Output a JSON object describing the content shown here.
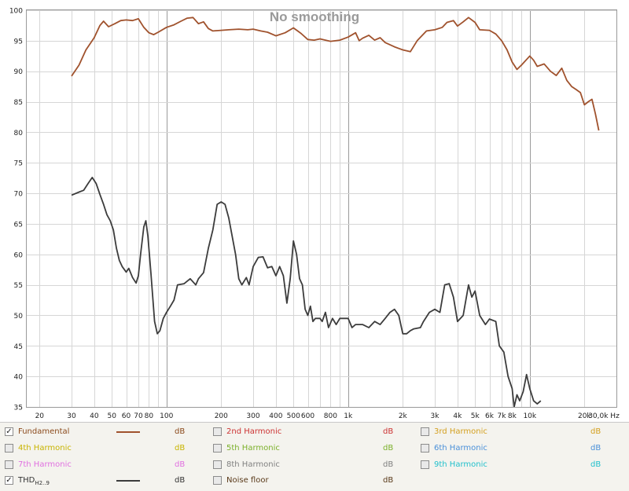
{
  "chart_data": {
    "type": "line",
    "title": "No smoothing",
    "x_scale": "log",
    "xlim": [
      17,
      30000
    ],
    "ylim": [
      35,
      100
    ],
    "y_ticks": [
      35,
      40,
      45,
      50,
      55,
      60,
      65,
      70,
      75,
      80,
      85,
      90,
      95,
      100
    ],
    "y_unit": "dB",
    "x_ticks": [
      {
        "value": 20,
        "label": "20"
      },
      {
        "value": 30,
        "label": "30"
      },
      {
        "value": 40,
        "label": "40"
      },
      {
        "value": 50,
        "label": "50"
      },
      {
        "value": 60,
        "label": "60"
      },
      {
        "value": 70,
        "label": "70"
      },
      {
        "value": 80,
        "label": "80"
      },
      {
        "value": 100,
        "label": "100"
      },
      {
        "value": 200,
        "label": "200"
      },
      {
        "value": 300,
        "label": "300"
      },
      {
        "value": 400,
        "label": "400"
      },
      {
        "value": 500,
        "label": "500"
      },
      {
        "value": 600,
        "label": "600"
      },
      {
        "value": 800,
        "label": "800"
      },
      {
        "value": 1000,
        "label": "1k"
      },
      {
        "value": 2000,
        "label": "2k"
      },
      {
        "value": 3000,
        "label": "3k"
      },
      {
        "value": 4000,
        "label": "4k"
      },
      {
        "value": 5000,
        "label": "5k"
      },
      {
        "value": 6000,
        "label": "6k"
      },
      {
        "value": 7000,
        "label": "7k"
      },
      {
        "value": 8000,
        "label": "8k"
      },
      {
        "value": 10000,
        "label": "10k"
      },
      {
        "value": 20000,
        "label": "20k"
      },
      {
        "value": 30000,
        "label": "30,0k Hz"
      }
    ],
    "grid": true,
    "series": [
      {
        "name": "Fundamental",
        "color": "#a0522d",
        "points": [
          [
            30,
            89.2
          ],
          [
            33,
            91
          ],
          [
            36,
            93.5
          ],
          [
            40,
            95.5
          ],
          [
            43,
            97.5
          ],
          [
            45,
            98.2
          ],
          [
            48,
            97.3
          ],
          [
            52,
            97.8
          ],
          [
            56,
            98.3
          ],
          [
            60,
            98.4
          ],
          [
            65,
            98.3
          ],
          [
            70,
            98.6
          ],
          [
            75,
            97.2
          ],
          [
            80,
            96.3
          ],
          [
            85,
            96
          ],
          [
            90,
            96.4
          ],
          [
            100,
            97.2
          ],
          [
            110,
            97.6
          ],
          [
            120,
            98.2
          ],
          [
            130,
            98.7
          ],
          [
            140,
            98.8
          ],
          [
            150,
            97.8
          ],
          [
            160,
            98.1
          ],
          [
            170,
            97
          ],
          [
            180,
            96.6
          ],
          [
            200,
            96.7
          ],
          [
            220,
            96.8
          ],
          [
            250,
            96.9
          ],
          [
            280,
            96.8
          ],
          [
            300,
            96.9
          ],
          [
            330,
            96.6
          ],
          [
            360,
            96.4
          ],
          [
            400,
            95.8
          ],
          [
            450,
            96.3
          ],
          [
            500,
            97.1
          ],
          [
            550,
            96.2
          ],
          [
            600,
            95.2
          ],
          [
            650,
            95.1
          ],
          [
            700,
            95.3
          ],
          [
            750,
            95.1
          ],
          [
            800,
            94.9
          ],
          [
            900,
            95.1
          ],
          [
            1000,
            95.6
          ],
          [
            1100,
            96.3
          ],
          [
            1150,
            95
          ],
          [
            1200,
            95.4
          ],
          [
            1300,
            95.9
          ],
          [
            1400,
            95.1
          ],
          [
            1500,
            95.5
          ],
          [
            1600,
            94.7
          ],
          [
            1800,
            94
          ],
          [
            2000,
            93.5
          ],
          [
            2200,
            93.2
          ],
          [
            2400,
            95
          ],
          [
            2700,
            96.6
          ],
          [
            3000,
            96.8
          ],
          [
            3300,
            97.2
          ],
          [
            3500,
            98
          ],
          [
            3800,
            98.3
          ],
          [
            4000,
            97.4
          ],
          [
            4300,
            98.1
          ],
          [
            4600,
            98.8
          ],
          [
            5000,
            98
          ],
          [
            5300,
            96.8
          ],
          [
            6000,
            96.7
          ],
          [
            6500,
            96.1
          ],
          [
            7000,
            95
          ],
          [
            7500,
            93.5
          ],
          [
            8000,
            91.5
          ],
          [
            8500,
            90.3
          ],
          [
            9000,
            91
          ],
          [
            10000,
            92.5
          ],
          [
            10500,
            91.8
          ],
          [
            11000,
            90.8
          ],
          [
            12000,
            91.2
          ],
          [
            13000,
            90
          ],
          [
            14000,
            89.3
          ],
          [
            15000,
            90.5
          ],
          [
            16000,
            88.5
          ],
          [
            17000,
            87.5
          ],
          [
            18000,
            87
          ],
          [
            19000,
            86.5
          ],
          [
            20000,
            84.5
          ],
          [
            21000,
            85
          ],
          [
            22000,
            85.4
          ],
          [
            23000,
            83
          ],
          [
            24000,
            80.3
          ]
        ]
      },
      {
        "name": "THD",
        "color": "#3c3c3c",
        "points": [
          [
            30,
            69.7
          ],
          [
            33,
            70.2
          ],
          [
            35,
            70.5
          ],
          [
            37,
            71.6
          ],
          [
            39,
            72.6
          ],
          [
            41,
            71.6
          ],
          [
            43,
            69.8
          ],
          [
            45,
            68.2
          ],
          [
            47,
            66.5
          ],
          [
            49,
            65.5
          ],
          [
            51,
            64
          ],
          [
            53,
            61
          ],
          [
            55,
            59
          ],
          [
            57,
            58
          ],
          [
            60,
            57.1
          ],
          [
            62,
            57.7
          ],
          [
            65,
            56.2
          ],
          [
            68,
            55.3
          ],
          [
            70,
            56.5
          ],
          [
            72,
            60
          ],
          [
            75,
            64.5
          ],
          [
            77,
            65.5
          ],
          [
            79,
            63
          ],
          [
            82,
            57
          ],
          [
            86,
            49
          ],
          [
            89,
            47
          ],
          [
            92,
            47.5
          ],
          [
            96,
            49.5
          ],
          [
            100,
            50.5
          ],
          [
            105,
            51.5
          ],
          [
            110,
            52.5
          ],
          [
            115,
            55
          ],
          [
            125,
            55.2
          ],
          [
            135,
            56
          ],
          [
            145,
            55
          ],
          [
            150,
            56
          ],
          [
            160,
            57
          ],
          [
            170,
            61
          ],
          [
            180,
            64
          ],
          [
            190,
            68.2
          ],
          [
            200,
            68.6
          ],
          [
            210,
            68.2
          ],
          [
            220,
            66
          ],
          [
            240,
            60
          ],
          [
            250,
            56
          ],
          [
            260,
            55
          ],
          [
            275,
            56.2
          ],
          [
            285,
            55
          ],
          [
            300,
            58
          ],
          [
            320,
            59.5
          ],
          [
            340,
            59.6
          ],
          [
            360,
            57.8
          ],
          [
            380,
            58
          ],
          [
            400,
            56.5
          ],
          [
            420,
            58
          ],
          [
            440,
            56.5
          ],
          [
            460,
            52
          ],
          [
            480,
            56
          ],
          [
            500,
            62.2
          ],
          [
            520,
            60
          ],
          [
            540,
            56
          ],
          [
            560,
            55
          ],
          [
            580,
            51
          ],
          [
            600,
            50
          ],
          [
            620,
            51.5
          ],
          [
            640,
            49
          ],
          [
            660,
            49.5
          ],
          [
            700,
            49.5
          ],
          [
            720,
            49
          ],
          [
            750,
            50.5
          ],
          [
            780,
            48
          ],
          [
            820,
            49.5
          ],
          [
            860,
            48.5
          ],
          [
            900,
            49.5
          ],
          [
            1000,
            49.5
          ],
          [
            1050,
            48
          ],
          [
            1100,
            48.5
          ],
          [
            1200,
            48.5
          ],
          [
            1300,
            48
          ],
          [
            1400,
            49
          ],
          [
            1500,
            48.5
          ],
          [
            1600,
            49.5
          ],
          [
            1700,
            50.5
          ],
          [
            1800,
            51
          ],
          [
            1900,
            50
          ],
          [
            2000,
            47
          ],
          [
            2100,
            47
          ],
          [
            2200,
            47.5
          ],
          [
            2300,
            47.8
          ],
          [
            2500,
            48
          ],
          [
            2600,
            49
          ],
          [
            2800,
            50.5
          ],
          [
            3000,
            51
          ],
          [
            3200,
            50.5
          ],
          [
            3400,
            55
          ],
          [
            3600,
            55.2
          ],
          [
            3800,
            53
          ],
          [
            4000,
            49
          ],
          [
            4300,
            50
          ],
          [
            4600,
            55
          ],
          [
            4800,
            53
          ],
          [
            5000,
            54
          ],
          [
            5300,
            50
          ],
          [
            5700,
            48.5
          ],
          [
            6000,
            49.4
          ],
          [
            6500,
            49
          ],
          [
            6800,
            45
          ],
          [
            7200,
            44
          ],
          [
            7600,
            40
          ],
          [
            8000,
            38
          ],
          [
            8200,
            35
          ],
          [
            8500,
            37
          ],
          [
            8800,
            36
          ],
          [
            9200,
            37.5
          ],
          [
            9600,
            40.3
          ],
          [
            10000,
            38
          ],
          [
            10500,
            36
          ],
          [
            11000,
            35.5
          ],
          [
            11500,
            36
          ]
        ]
      }
    ]
  },
  "legend": {
    "items": [
      {
        "label": "Fundamental",
        "unit": "dB",
        "checked": true,
        "color": "#8b4a1c",
        "line_color": "#a0522d"
      },
      {
        "label": "2nd Harmonic",
        "unit": "dB",
        "checked": false,
        "color": "#cc3333"
      },
      {
        "label": "3rd Harmonic",
        "unit": "dB",
        "checked": false,
        "color": "#d4a020"
      },
      {
        "label": "4th Harmonic",
        "unit": "dB",
        "checked": false,
        "color": "#c8b400"
      },
      {
        "label": "5th Harmonic",
        "unit": "dB",
        "checked": false,
        "color": "#7bb02a"
      },
      {
        "label": "6th Harmonic",
        "unit": "dB",
        "checked": false,
        "color": "#4a90d9"
      },
      {
        "label": "7th Harmonic",
        "unit": "dB",
        "checked": false,
        "color": "#e070e0"
      },
      {
        "label": "8th Harmonic",
        "unit": "dB",
        "checked": false,
        "color": "#808080"
      },
      {
        "label": "9th Harmonic",
        "unit": "dB",
        "checked": false,
        "color": "#22c0cc"
      },
      {
        "label": "THD",
        "label_sub": "H2..9",
        "unit": "dB",
        "checked": true,
        "color": "#333333",
        "line_color": "#3c3c3c"
      },
      {
        "label": "Noise floor",
        "unit": "dB",
        "checked": false,
        "color": "#5a3a1a"
      }
    ]
  },
  "check_glyph": "✓"
}
